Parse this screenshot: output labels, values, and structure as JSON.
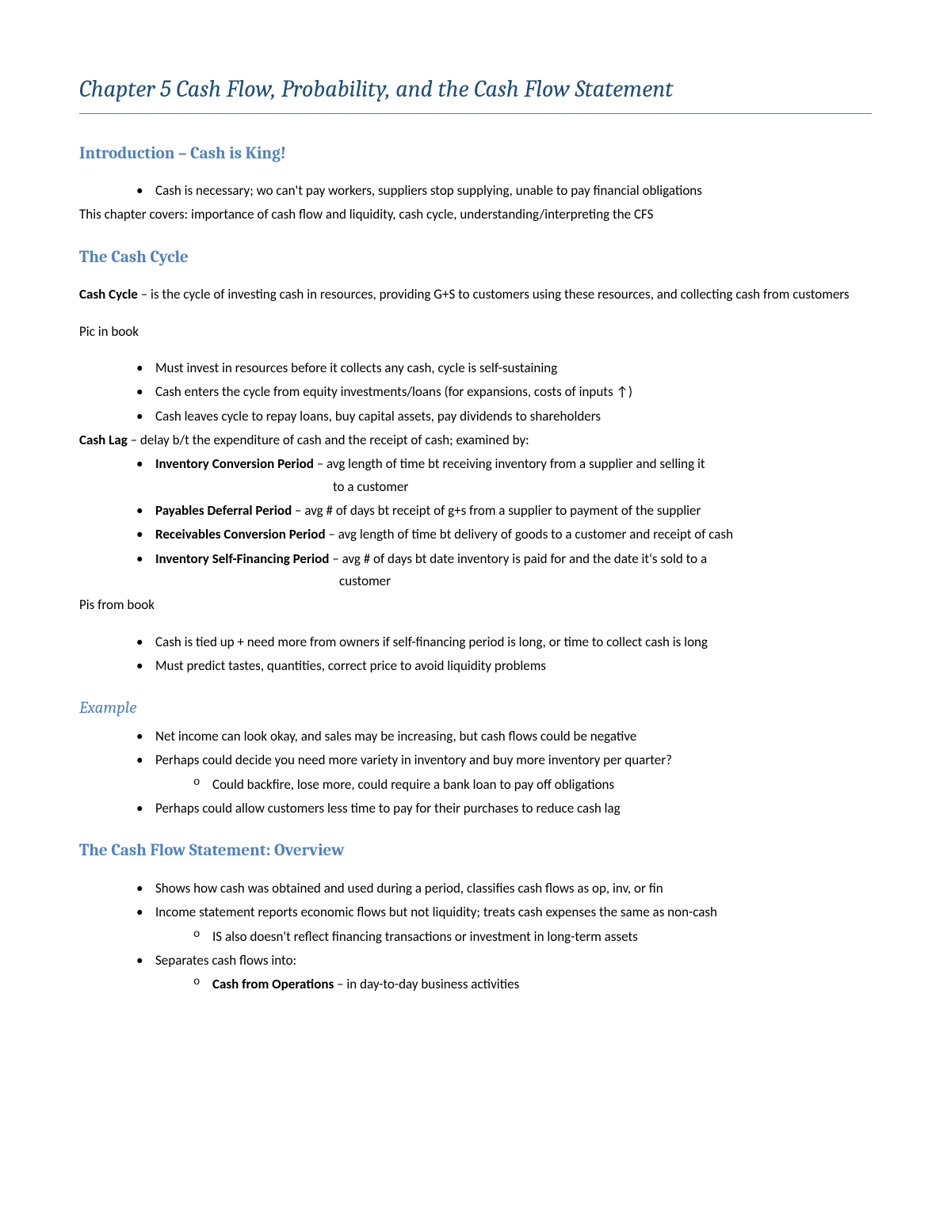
{
  "title": "Chapter 5 Cash Flow, Probability, and the Cash Flow Statement",
  "colors": {
    "title": "#1f4e79",
    "heading": "#4f81bd",
    "rule": "#4f81bd",
    "body": "#000000",
    "background": "#ffffff"
  },
  "sections": {
    "intro": {
      "heading": "Introduction – Cash is King!",
      "bullets": [
        "Cash is necessary; wo can't pay workers, suppliers stop supplying, unable to pay financial obligations"
      ],
      "after": "This chapter covers: importance of cash flow and liquidity, cash cycle, understanding/interpreting the CFS"
    },
    "cycle": {
      "heading": "The Cash Cycle",
      "def_bold": "Cash Cycle",
      "def_rest": " – is the cycle of investing cash in resources, providing G+S to customers using these resources, and collecting cash from customers",
      "pic1": "Pic in book",
      "bullets1": [
        "Must invest in resources before it collects any cash, cycle is self-sustaining",
        "Cash enters the cycle from equity investments/loans (for expansions, costs of inputs ↑)",
        "Cash leaves cycle to repay loans, buy capital assets, pay dividends to shareholders"
      ],
      "lag_bold": "Cash Lag",
      "lag_rest": " – delay b/t the expenditure of cash and the receipt of cash; examined by:",
      "lag_items": {
        "inv_b": "Inventory Conversion Period",
        "inv_r": " – avg length of time bt receiving inventory from a supplier and selling it",
        "inv_cont": "to a customer",
        "pay_b": "Payables Deferral Period",
        "pay_r": " – avg # of days bt receipt of g+s from a supplier to payment of the supplier",
        "rec_b": "Receivables Conversion Period",
        "rec_r": " – avg length of time bt delivery of goods to a customer and receipt of cash",
        "self_b": "Inventory Self-Financing Period",
        "self_r": " – avg # of days bt date inventory is paid for and the date it's sold to a",
        "self_cont": "customer"
      },
      "pic2": "Pis from book",
      "bullets2": [
        "Cash is tied up + need more from owners if self-financing period is long, or time to collect cash is long",
        "Must predict tastes, quantities, correct price to avoid liquidity problems"
      ]
    },
    "example": {
      "heading": "Example",
      "b1": "Net income can look okay, and sales may be increasing, but cash flows could be negative",
      "b2": "Perhaps could decide you need more variety in inventory and buy more inventory per quarter?",
      "b2s": "Could backfire, lose more, could require a bank loan to pay off obligations",
      "b3": "Perhaps could allow customers less time to pay for their purchases to reduce cash lag"
    },
    "cfs": {
      "heading": "The Cash Flow Statement: Overview",
      "b1": "Shows how cash was obtained and used during a period, classifies cash flows as op, inv, or fin",
      "b2": "Income statement reports economic flows but not liquidity; treats cash expenses the same as non-cash",
      "b2s": "IS also doesn't reflect financing transactions or investment in long-term assets",
      "b3": "Separates cash flows into:",
      "b3s_b": "Cash from Operations",
      "b3s_r": " – in day-to-day business activities"
    }
  }
}
